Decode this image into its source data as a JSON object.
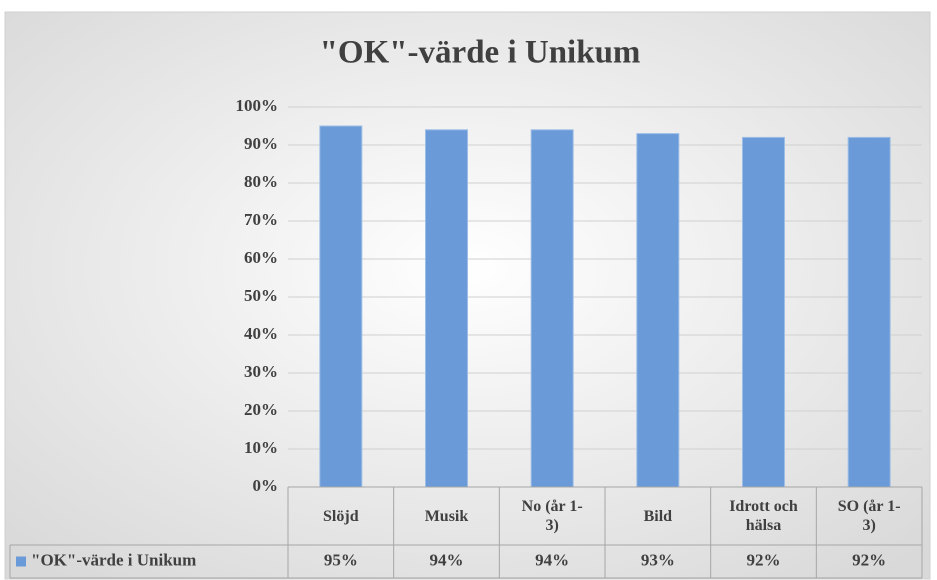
{
  "chart_data": {
    "type": "bar",
    "title": "\"OK\"-värde i Unikum",
    "categories": [
      "Slöjd",
      "Musik",
      "No (år 1-3)",
      "Bild",
      "Idrott och hälsa",
      "SO (år 1-3)"
    ],
    "series": [
      {
        "name": "\"OK\"-värde i Unikum",
        "color": "#6a9bd8",
        "values": [
          95,
          94,
          94,
          93,
          92,
          92
        ],
        "value_labels": [
          "95%",
          "94%",
          "94%",
          "93%",
          "92%",
          "92%"
        ]
      }
    ],
    "ylim": [
      0,
      100
    ],
    "yticks": [
      {
        "value": 0,
        "label": "0%"
      },
      {
        "value": 10,
        "label": "10%"
      },
      {
        "value": 20,
        "label": "20%"
      },
      {
        "value": 30,
        "label": "30%"
      },
      {
        "value": 40,
        "label": "40%"
      },
      {
        "value": 50,
        "label": "50%"
      },
      {
        "value": 60,
        "label": "60%"
      },
      {
        "value": 70,
        "label": "70%"
      },
      {
        "value": 80,
        "label": "80%"
      },
      {
        "value": 90,
        "label": "90%"
      },
      {
        "value": 100,
        "label": "100%"
      }
    ],
    "grid": true,
    "data_table": true
  }
}
